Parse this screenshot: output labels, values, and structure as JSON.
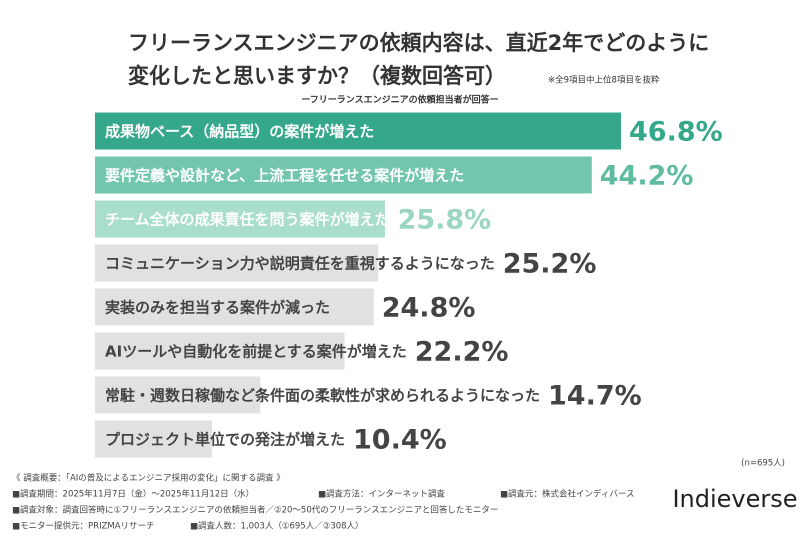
{
  "chart_data": {
    "type": "hbar",
    "title": [
      "フリーランスエンジニアの依頼内容は、直近2年でどのように",
      "変化したと思いますか？（複数回答可）"
    ],
    "note": "※全9項目中上位8項目を抜粋",
    "subtitle": "ーフリーランスエンジニアの依頼担当者が回答ー",
    "categories": [
      "成果物ベース（納品型）の案件が増えた",
      "要件定義や設計など、上流工程を任せる案件が増えた",
      "チーム全体の成果責任を問う案件が増えた",
      "コミュニケーション力や説明責任を重視するようになった",
      "実装のみを担当する案件が減った",
      "AIツールや自動化を前提とする案件が増えた",
      "常駐・週数日稼働など条件面の柔軟性が求められるようになった",
      "プロジェクト単位での発注が増えた"
    ],
    "values": [
      46.8,
      44.2,
      25.8,
      25.2,
      24.8,
      22.2,
      14.7,
      10.4
    ],
    "value_labels": [
      "46.8%",
      "44.2%",
      "25.8%",
      "25.2%",
      "24.8%",
      "22.2%",
      "14.7%",
      "10.4%"
    ],
    "colors": [
      "#35a88b",
      "#72c6ad",
      "#a9ddcc",
      "#e1e1e1",
      "#e1e1e1",
      "#e1e1e1",
      "#e1e1e1",
      "#e1e1e1"
    ],
    "category_label_colors": [
      "#ffffff",
      "#ffffff",
      "#ffffff",
      "#444444",
      "#444444",
      "#444444",
      "#444444",
      "#444444"
    ],
    "value_label_colors": [
      "#35a88b",
      "#5fbca1",
      "#9bd6c3",
      "#444444",
      "#444444",
      "#444444",
      "#444444",
      "#444444"
    ]
  },
  "footer": {
    "sample": "(n=695人)",
    "heading": "《 調査概要：「AIの普及によるエンジニア採用の変化」に関する調査 》",
    "period": "■調査期間：2025年11月7日（金）～2025年11月12日（水）",
    "method": "■調査方法：インターネット調査",
    "source": "■調査元：株式会社インディバース",
    "target": "■調査対象：調査回答時に①フリーランスエンジニアの依頼担当者／②20～50代のフリーランスエンジニアと回答したモニター",
    "provider": "■モニター提供元：PRIZMAリサーチ",
    "count": "■調査人数：1,003人（①695人／②308人）",
    "logo": "Indieverse"
  }
}
